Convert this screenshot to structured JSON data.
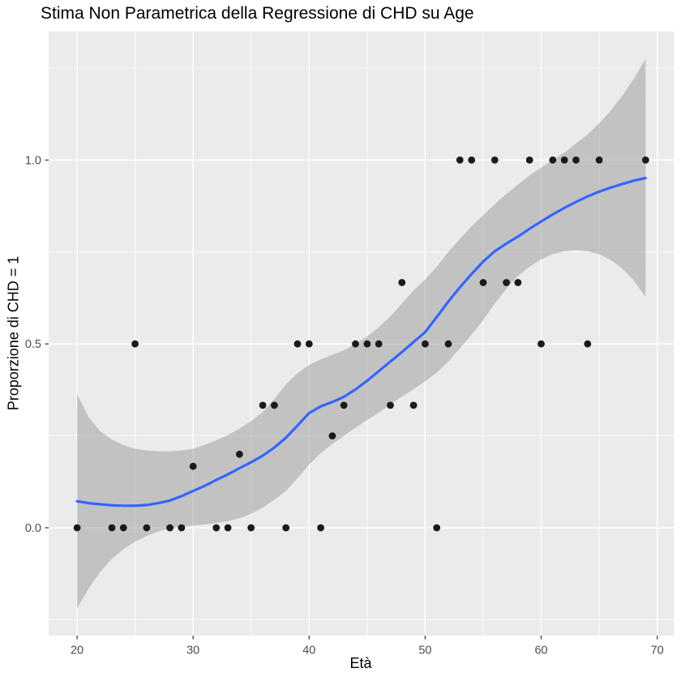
{
  "chart_data": {
    "type": "scatter",
    "title": "Stima Non Parametrica della Regressione di CHD su Age",
    "xlabel": "Età",
    "ylabel": "Proporzione di CHD = 1",
    "legend": "none",
    "grid": "on",
    "xlim": [
      17.55,
      71.45
    ],
    "ylim": [
      -0.2935,
      1.3495
    ],
    "x_ticks": [
      {
        "v": 20,
        "label": "20"
      },
      {
        "v": 30,
        "label": "30"
      },
      {
        "v": 40,
        "label": "40"
      },
      {
        "v": 50,
        "label": "50"
      },
      {
        "v": 60,
        "label": "60"
      },
      {
        "v": 70,
        "label": "70"
      }
    ],
    "y_ticks": [
      {
        "v": 0.0,
        "label": "0.0"
      },
      {
        "v": 0.5,
        "label": "0.5"
      },
      {
        "v": 1.0,
        "label": "1.0"
      }
    ],
    "x_minor_ticks": [
      25,
      35,
      45,
      55,
      65
    ],
    "y_minor_ticks": [
      -0.25,
      0.25,
      0.75,
      1.25
    ],
    "points": [
      [
        20,
        0
      ],
      [
        23,
        0
      ],
      [
        24,
        0
      ],
      [
        25,
        0.5
      ],
      [
        26,
        0
      ],
      [
        28,
        0
      ],
      [
        29,
        0
      ],
      [
        30,
        0.167
      ],
      [
        32,
        0
      ],
      [
        33,
        0
      ],
      [
        34,
        0.2
      ],
      [
        35,
        0
      ],
      [
        36,
        0.333
      ],
      [
        37,
        0.333
      ],
      [
        38,
        0
      ],
      [
        39,
        0.5
      ],
      [
        40,
        0.5
      ],
      [
        41,
        0
      ],
      [
        42,
        0.25
      ],
      [
        43,
        0.333
      ],
      [
        44,
        0.5
      ],
      [
        45,
        0.5
      ],
      [
        46,
        0.5
      ],
      [
        47,
        0.333
      ],
      [
        48,
        0.667
      ],
      [
        49,
        0.333
      ],
      [
        50,
        0.5
      ],
      [
        51,
        0
      ],
      [
        52,
        0.5
      ],
      [
        53,
        1
      ],
      [
        54,
        1
      ],
      [
        55,
        0.667
      ],
      [
        56,
        1
      ],
      [
        57,
        0.667
      ],
      [
        58,
        0.667
      ],
      [
        59,
        1
      ],
      [
        60,
        0.5
      ],
      [
        61,
        1
      ],
      [
        62,
        1
      ],
      [
        63,
        1
      ],
      [
        64,
        0.5
      ],
      [
        65,
        1
      ],
      [
        69,
        1
      ]
    ],
    "smooth_line": [
      [
        20,
        0.072
      ],
      [
        21,
        0.067
      ],
      [
        22,
        0.064
      ],
      [
        23,
        0.061
      ],
      [
        24,
        0.06
      ],
      [
        25,
        0.06
      ],
      [
        26,
        0.062
      ],
      [
        27,
        0.067
      ],
      [
        28,
        0.074
      ],
      [
        29,
        0.086
      ],
      [
        30,
        0.1
      ],
      [
        31,
        0.114
      ],
      [
        32,
        0.13
      ],
      [
        33,
        0.145
      ],
      [
        34,
        0.162
      ],
      [
        35,
        0.178
      ],
      [
        36,
        0.196
      ],
      [
        37,
        0.218
      ],
      [
        38,
        0.245
      ],
      [
        39,
        0.278
      ],
      [
        40,
        0.312
      ],
      [
        41,
        0.33
      ],
      [
        42,
        0.342
      ],
      [
        43,
        0.356
      ],
      [
        44,
        0.376
      ],
      [
        45,
        0.4
      ],
      [
        46,
        0.426
      ],
      [
        47,
        0.452
      ],
      [
        48,
        0.478
      ],
      [
        49,
        0.505
      ],
      [
        50,
        0.532
      ],
      [
        51,
        0.573
      ],
      [
        52,
        0.615
      ],
      [
        53,
        0.654
      ],
      [
        54,
        0.69
      ],
      [
        55,
        0.724
      ],
      [
        56,
        0.752
      ],
      [
        57,
        0.773
      ],
      [
        58,
        0.792
      ],
      [
        59,
        0.813
      ],
      [
        60,
        0.833
      ],
      [
        61,
        0.852
      ],
      [
        62,
        0.87
      ],
      [
        63,
        0.886
      ],
      [
        64,
        0.901
      ],
      [
        65,
        0.914
      ],
      [
        66,
        0.925
      ],
      [
        67,
        0.935
      ],
      [
        68,
        0.944
      ],
      [
        69,
        0.951
      ]
    ],
    "ribbon_upper": [
      [
        20,
        0.364
      ],
      [
        21,
        0.3
      ],
      [
        22,
        0.262
      ],
      [
        23,
        0.24
      ],
      [
        24,
        0.225
      ],
      [
        25,
        0.215
      ],
      [
        26,
        0.21
      ],
      [
        27,
        0.208
      ],
      [
        28,
        0.208
      ],
      [
        29,
        0.21
      ],
      [
        30,
        0.215
      ],
      [
        31,
        0.225
      ],
      [
        32,
        0.238
      ],
      [
        33,
        0.252
      ],
      [
        34,
        0.27
      ],
      [
        35,
        0.29
      ],
      [
        36,
        0.315
      ],
      [
        37,
        0.35
      ],
      [
        38,
        0.39
      ],
      [
        39,
        0.42
      ],
      [
        40,
        0.443
      ],
      [
        41,
        0.458
      ],
      [
        42,
        0.47
      ],
      [
        43,
        0.483
      ],
      [
        44,
        0.5
      ],
      [
        45,
        0.52
      ],
      [
        46,
        0.545
      ],
      [
        47,
        0.575
      ],
      [
        48,
        0.61
      ],
      [
        49,
        0.645
      ],
      [
        50,
        0.675
      ],
      [
        51,
        0.71
      ],
      [
        52,
        0.75
      ],
      [
        53,
        0.785
      ],
      [
        54,
        0.82
      ],
      [
        55,
        0.85
      ],
      [
        56,
        0.88
      ],
      [
        57,
        0.908
      ],
      [
        58,
        0.933
      ],
      [
        59,
        0.958
      ],
      [
        60,
        0.98
      ],
      [
        61,
        1.0
      ],
      [
        62,
        1.02
      ],
      [
        63,
        1.045
      ],
      [
        64,
        1.07
      ],
      [
        65,
        1.1
      ],
      [
        66,
        1.135
      ],
      [
        67,
        1.175
      ],
      [
        68,
        1.222
      ],
      [
        69,
        1.275
      ]
    ],
    "ribbon_lower": [
      [
        20,
        -0.219
      ],
      [
        21,
        -0.165
      ],
      [
        22,
        -0.12
      ],
      [
        23,
        -0.085
      ],
      [
        24,
        -0.058
      ],
      [
        25,
        -0.038
      ],
      [
        26,
        -0.022
      ],
      [
        27,
        -0.01
      ],
      [
        28,
        -0.002
      ],
      [
        29,
        0.003
      ],
      [
        30,
        0.006
      ],
      [
        31,
        0.009
      ],
      [
        32,
        0.013
      ],
      [
        33,
        0.018
      ],
      [
        34,
        0.026
      ],
      [
        35,
        0.038
      ],
      [
        36,
        0.055
      ],
      [
        37,
        0.076
      ],
      [
        38,
        0.1
      ],
      [
        39,
        0.135
      ],
      [
        40,
        0.172
      ],
      [
        41,
        0.203
      ],
      [
        42,
        0.228
      ],
      [
        43,
        0.25
      ],
      [
        44,
        0.272
      ],
      [
        45,
        0.293
      ],
      [
        46,
        0.313
      ],
      [
        47,
        0.335
      ],
      [
        48,
        0.357
      ],
      [
        49,
        0.377
      ],
      [
        50,
        0.398
      ],
      [
        51,
        0.422
      ],
      [
        52,
        0.452
      ],
      [
        53,
        0.488
      ],
      [
        54,
        0.525
      ],
      [
        55,
        0.565
      ],
      [
        56,
        0.61
      ],
      [
        57,
        0.65
      ],
      [
        58,
        0.685
      ],
      [
        59,
        0.71
      ],
      [
        60,
        0.73
      ],
      [
        61,
        0.744
      ],
      [
        62,
        0.752
      ],
      [
        63,
        0.755
      ],
      [
        64,
        0.752
      ],
      [
        65,
        0.744
      ],
      [
        66,
        0.728
      ],
      [
        67,
        0.705
      ],
      [
        68,
        0.672
      ],
      [
        69,
        0.628
      ]
    ],
    "colors": {
      "panel_bg": "#EBEBEB",
      "grid": "#FFFFFF",
      "ribbon": "rgba(153,153,153,0.5)",
      "line": "#3366FF",
      "point": "#1A1A1A",
      "tick_text": "#4D4D4D",
      "tick_mark": "#333333"
    }
  }
}
